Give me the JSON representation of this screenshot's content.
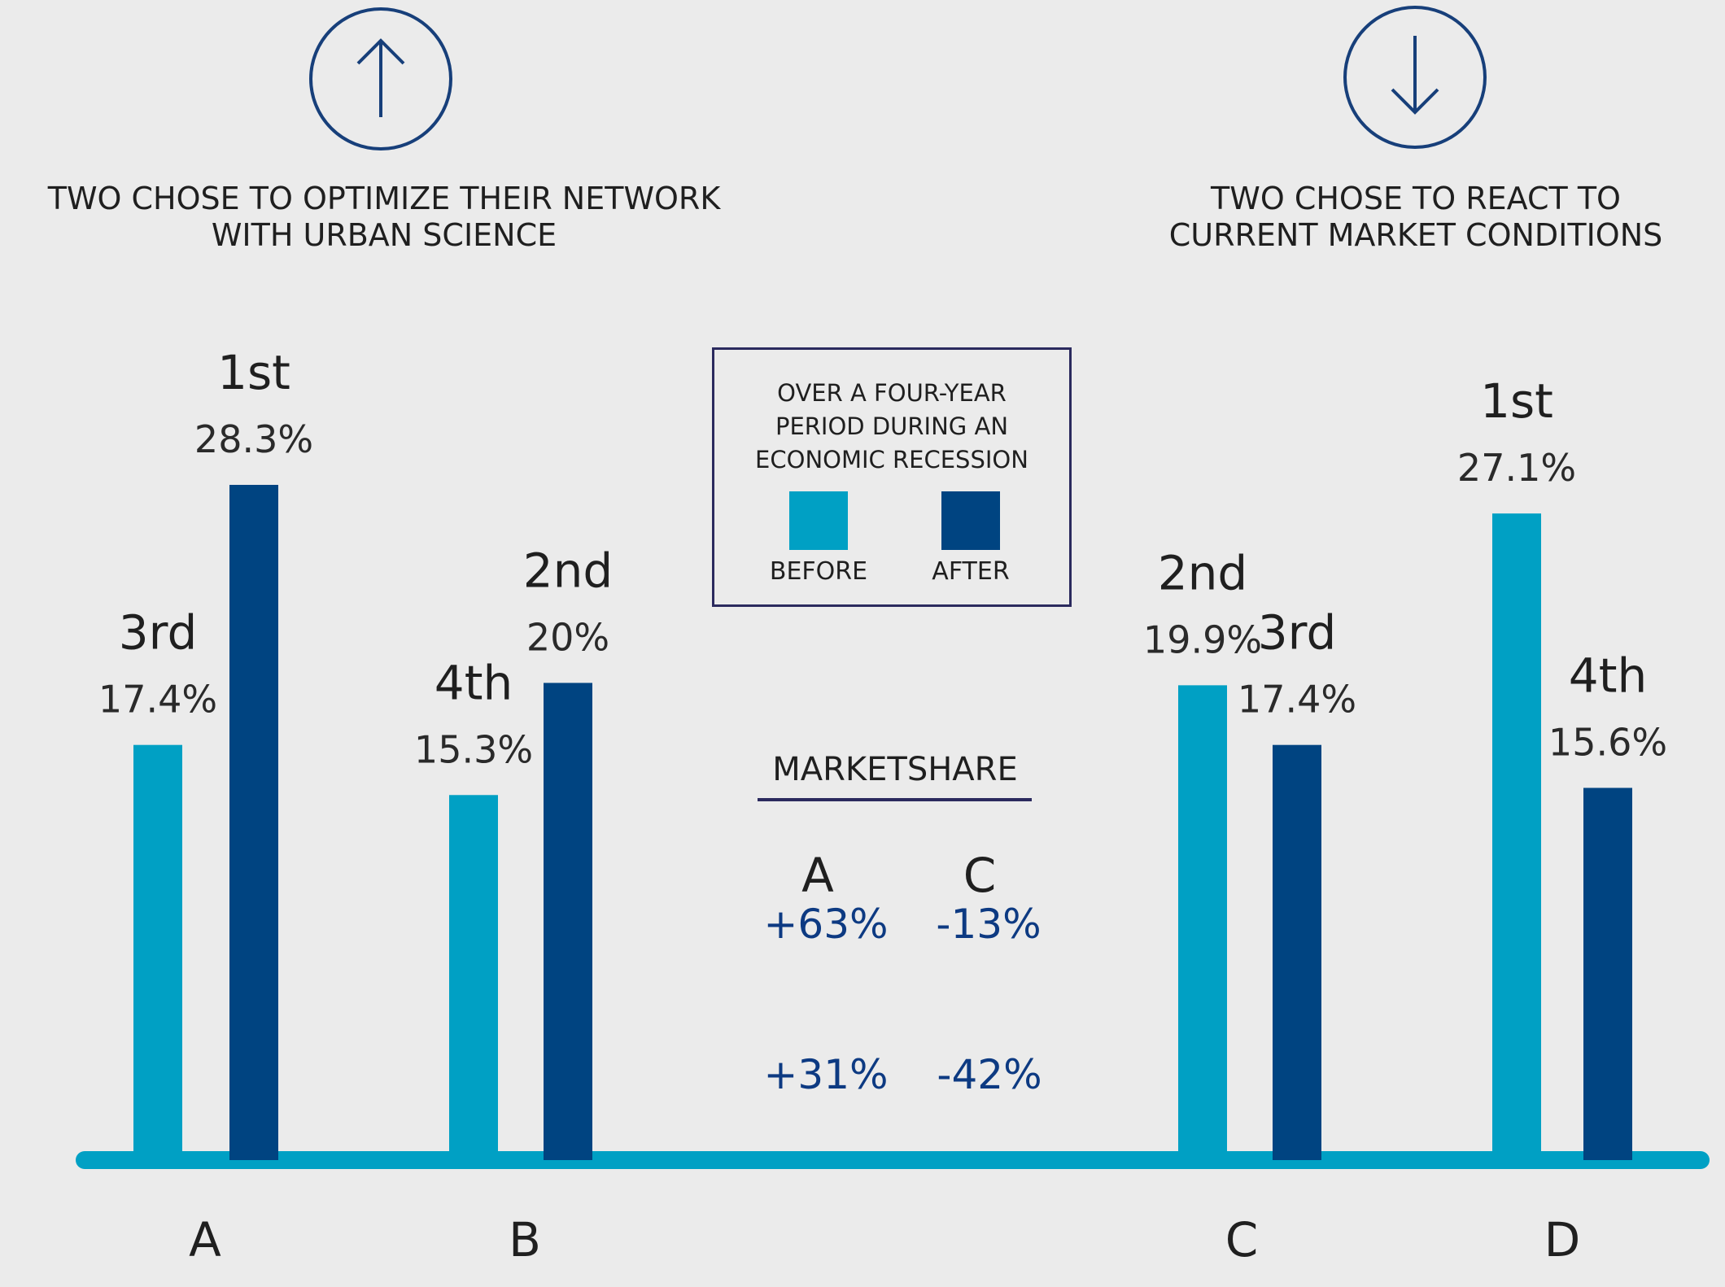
{
  "headings": {
    "left": "TWO CHOSE TO OPTIMIZE THEIR NETWORK WITH URBAN SCIENCE",
    "right": "TWO CHOSE TO REACT TO CURRENT MARKET CONDITIONS"
  },
  "icons": {
    "left": "arrow-up-icon",
    "right": "arrow-down-icon"
  },
  "legend": {
    "title_lines": [
      "OVER A FOUR-YEAR",
      "PERIOD DURING AN",
      "ECONOMIC RECESSION"
    ],
    "before_label": "BEFORE",
    "after_label": "AFTER"
  },
  "marketshare": {
    "title": "MARKETSHARE",
    "columns": [
      "A",
      "C"
    ],
    "rows": [
      [
        "+63%",
        "-13%"
      ],
      [
        "+31%",
        "-42%"
      ]
    ]
  },
  "colors": {
    "before": "#00a0c4",
    "after": "#004481",
    "baseline": "#00a0c4",
    "circle": "#173f7a",
    "box_border": "#2b2a5e",
    "marketshare_values": "#0d3a82"
  },
  "chart_data": {
    "type": "bar",
    "categories": [
      "A",
      "B",
      "C",
      "D"
    ],
    "series": [
      {
        "name": "BEFORE",
        "values": [
          17.4,
          15.3,
          19.9,
          27.1
        ],
        "ranks": [
          "3rd",
          "4th",
          "2nd",
          "1st"
        ]
      },
      {
        "name": "AFTER",
        "values": [
          28.3,
          20,
          17.4,
          15.6
        ],
        "ranks": [
          "1st",
          "2nd",
          "3rd",
          "4th"
        ]
      }
    ],
    "value_labels": {
      "before": [
        "17.4%",
        "15.3%",
        "19.9%",
        "27.1%"
      ],
      "after": [
        "28.3%",
        "20%",
        "17.4%",
        "15.6%"
      ]
    },
    "title": "",
    "xlabel": "",
    "ylabel": "",
    "ylim": [
      0,
      28.3
    ]
  }
}
